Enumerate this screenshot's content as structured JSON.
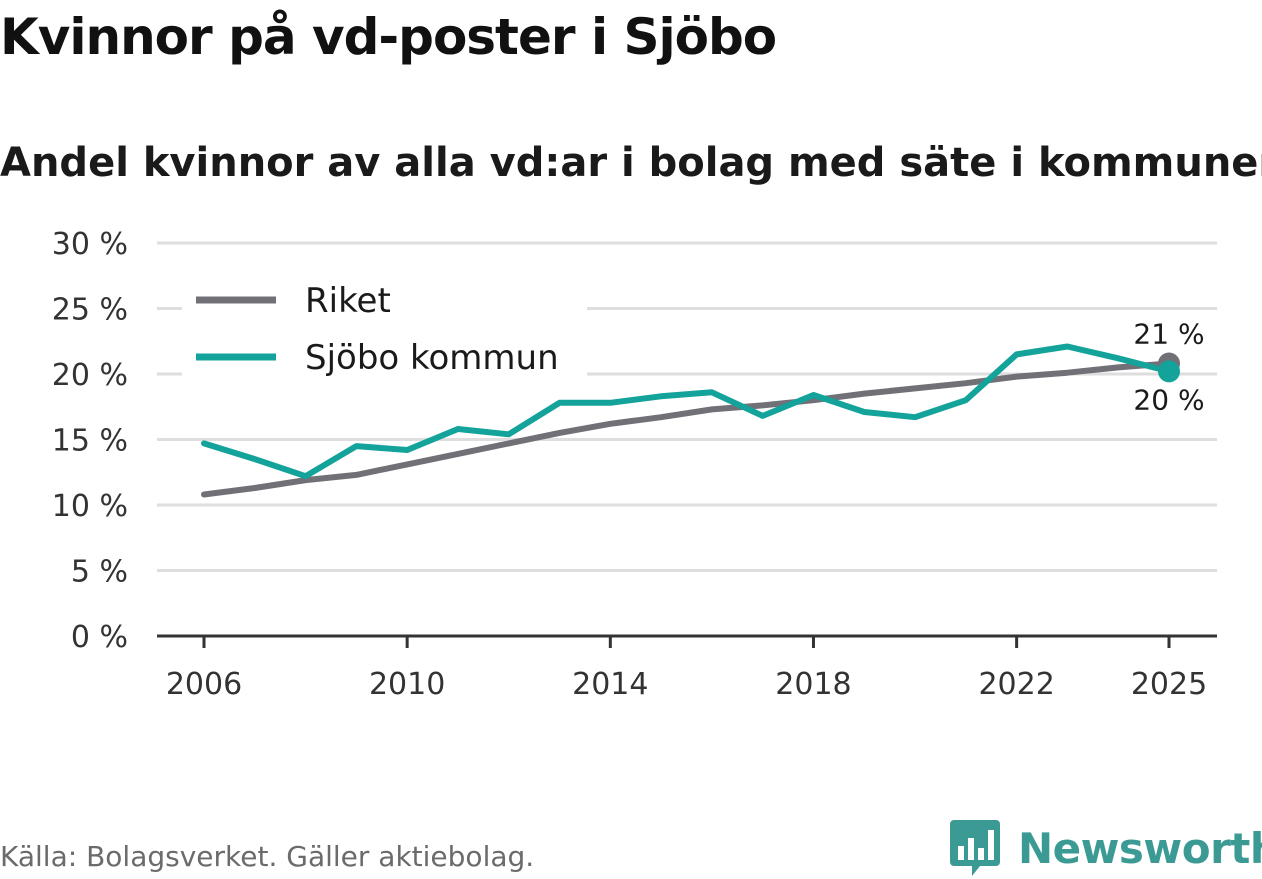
{
  "title": "Kvinnor på vd-poster i Sjöbo",
  "subtitle": "Andel kvinnor av alla vd:ar i bolag med säte i kommunen",
  "source": "Källa: Bolagsverket. Gäller aktiebolag.",
  "brand": {
    "name": "Newsworthy",
    "logo_icon": "bar-chart-speech-bubble-icon",
    "color": "#3c9a95"
  },
  "chart_data": {
    "type": "line",
    "title": "Kvinnor på vd-poster i Sjöbo",
    "subtitle": "Andel kvinnor av alla vd:ar i bolag med säte i kommunen",
    "xlabel": "",
    "ylabel": "",
    "xlim": [
      2006,
      2025
    ],
    "ylim": [
      0,
      30
    ],
    "x_ticks": [
      2006,
      2010,
      2014,
      2018,
      2022,
      2025
    ],
    "x_tick_labels": [
      "2006",
      "2010",
      "2014",
      "2018",
      "2022",
      "2025"
    ],
    "y_ticks": [
      0,
      5,
      10,
      15,
      20,
      25,
      30
    ],
    "y_tick_labels": [
      "0 %",
      "5 %",
      "10 %",
      "15 %",
      "20 %",
      "25 %",
      "30 %"
    ],
    "grid": true,
    "legend_position": "top-left",
    "x": [
      2006,
      2007,
      2008,
      2009,
      2010,
      2011,
      2012,
      2013,
      2014,
      2015,
      2016,
      2017,
      2018,
      2019,
      2020,
      2021,
      2022,
      2023,
      2024,
      2025
    ],
    "series": [
      {
        "name": "Riket",
        "color": "#727077",
        "values": [
          10.8,
          11.3,
          11.9,
          12.3,
          13.1,
          13.9,
          14.7,
          15.5,
          16.2,
          16.7,
          17.3,
          17.6,
          18.0,
          18.5,
          18.9,
          19.3,
          19.8,
          20.1,
          20.5,
          20.8
        ],
        "end_label": "21 %"
      },
      {
        "name": "Sjöbo kommun",
        "color": "#13a39a",
        "values": [
          14.7,
          13.5,
          12.2,
          14.5,
          14.2,
          15.8,
          15.4,
          17.8,
          17.8,
          18.3,
          18.6,
          16.8,
          18.4,
          17.1,
          16.7,
          18.0,
          21.5,
          22.1,
          21.2,
          20.2
        ],
        "end_label": "20 %"
      }
    ]
  }
}
